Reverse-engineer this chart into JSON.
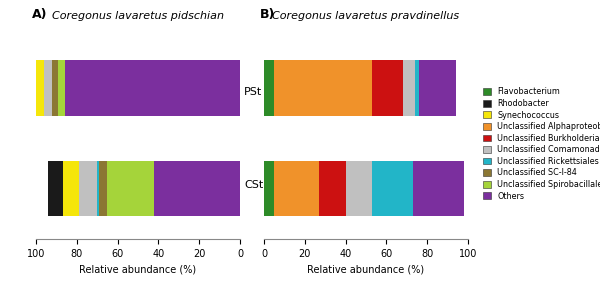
{
  "title_A": "Coregonus lavaretus pidschian",
  "title_B": "Coregonus lavaretus pravdinellus",
  "label_A": "A)",
  "label_B": "B)",
  "categories": [
    "PSt",
    "CSt"
  ],
  "colors": {
    "Flavobacterium": "#2e8b28",
    "Rhodobacter": "#1a1a1a",
    "Synechococcus": "#f5e60a",
    "Unclassified Alphaproteobacteria": "#f0922a",
    "Unclassified Burkholderiales": "#cc1111",
    "Unclassified Comamonadaceae": "#c0c0c0",
    "Unclassified Rickettsiales": "#22b5c8",
    "Unclassified SC-I-84": "#8b7733",
    "Unclassified Spirobacillales": "#a5d43a",
    "Others": "#7b2f9e"
  },
  "pidschian": {
    "PSt": {
      "Others": 86,
      "Unclassified Spirobacillales": 3,
      "Unclassified SC-I-84": 3,
      "Unclassified Comamonadaceae": 4,
      "Synechococcus": 6,
      "Rhodobacter": 5,
      "Flavobacterium": 0,
      "Unclassified Alphaproteobacteria": 0,
      "Unclassified Burkholderiales": 0,
      "Unclassified Rickettsiales": 0
    },
    "CSt": {
      "Others": 42,
      "Unclassified Spirobacillales": 23,
      "Unclassified SC-I-84": 4,
      "Unclassified Comamonadaceae": 9,
      "Synechococcus": 8,
      "Rhodobacter": 7,
      "Unclassified Rickettsiales": 1,
      "Flavobacterium": 0,
      "Unclassified Alphaproteobacteria": 0,
      "Unclassified Burkholderiales": 0
    }
  },
  "pravdinellus": {
    "PSt": {
      "Flavobacterium": 5,
      "Unclassified Alphaproteobacteria": 48,
      "Unclassified Burkholderiales": 15,
      "Unclassified Comamonadaceae": 6,
      "Unclassified Rickettsiales": 2,
      "Others": 18,
      "Rhodobacter": 0,
      "Synechococcus": 0,
      "Unclassified SC-I-84": 0,
      "Unclassified Spirobacillales": 0
    },
    "CSt": {
      "Flavobacterium": 5,
      "Unclassified Alphaproteobacteria": 22,
      "Unclassified Burkholderiales": 13,
      "Unclassified Comamonadaceae": 13,
      "Unclassified Rickettsiales": 20,
      "Others": 25,
      "Rhodobacter": 0,
      "Synechococcus": 0,
      "Unclassified SC-I-84": 0,
      "Unclassified Spirobacillales": 0
    }
  },
  "legend_order": [
    "Flavobacterium",
    "Rhodobacter",
    "Synechococcus",
    "Unclassified Alphaproteobacteria",
    "Unclassified Burkholderiales",
    "Unclassified Comamonadaceae",
    "Unclassified Rickettsiales",
    "Unclassified SC-I-84",
    "Unclassified Spirobacillales",
    "Others"
  ],
  "xlabel": "Relative abundance (%)"
}
